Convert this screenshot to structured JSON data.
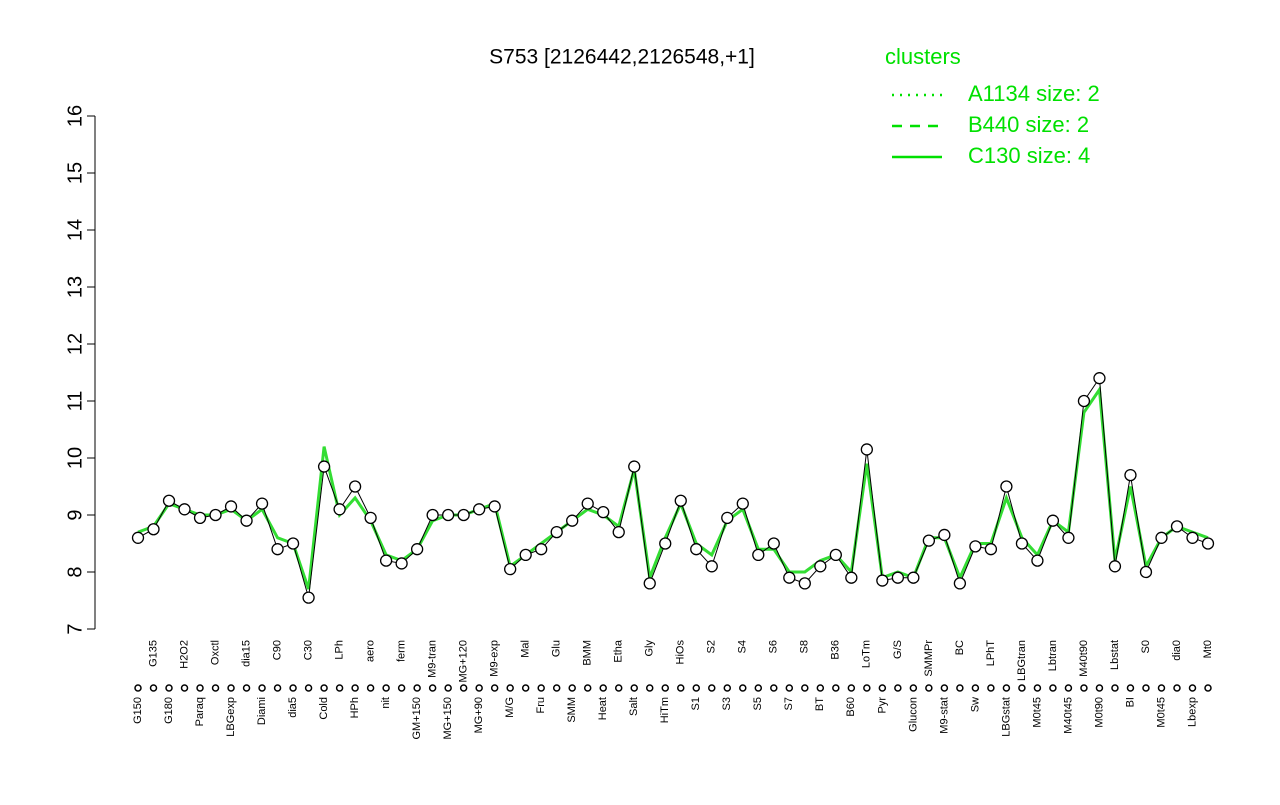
{
  "chart_data": {
    "type": "line",
    "title": "S753 [2126442,2126548,+1]",
    "ylim": [
      7,
      16
    ],
    "yticks": [
      7,
      8,
      9,
      10,
      11,
      12,
      13,
      14,
      15,
      16
    ],
    "legend_title": "clusters",
    "legend_color": "#00e000",
    "legend": [
      {
        "label": "A1134 size: 2",
        "style": "dotted"
      },
      {
        "label": "B440 size: 2",
        "style": "dashed"
      },
      {
        "label": "C130 size: 4",
        "style": "solid"
      }
    ],
    "categories": [
      "G150",
      "G135",
      "G180",
      "H2O2",
      "Paraq",
      "Oxctl",
      "LBGexp",
      "dia15",
      "Diami",
      "C90",
      "dia5",
      "C30",
      "Cold",
      "LPh",
      "HPh",
      "aero",
      "nit",
      "ferm",
      "GM+150",
      "M9-tran",
      "MG+150",
      "MG+120",
      "MG+90",
      "M9-exp",
      "M/G",
      "Mal",
      "Fru",
      "Glu",
      "SMM",
      "BMM",
      "Heat",
      "Etha",
      "Salt",
      "Gly",
      "HiTm",
      "HiOs",
      "S1",
      "S2",
      "S3",
      "S4",
      "S5",
      "S6",
      "S7",
      "S8",
      "BT",
      "B36",
      "B60",
      "LoTm",
      "Pyr",
      "G/S",
      "Glucon",
      "SMMPr",
      "M9-stat",
      "BC",
      "Sw",
      "LPhT",
      "LBGstat",
      "LBGtran",
      "M0t45",
      "Lbtran",
      "M40t45",
      "M40t90",
      "M0t90",
      "Lbstat",
      "BI",
      "S0",
      "M0t45",
      "dia0",
      "Lbexp",
      "Mt0"
    ],
    "values": [
      8.6,
      8.75,
      9.25,
      9.1,
      8.95,
      9.0,
      9.15,
      8.9,
      9.2,
      8.4,
      8.5,
      7.55,
      9.85,
      9.1,
      9.5,
      8.95,
      8.2,
      8.15,
      8.4,
      9.0,
      9.0,
      9.0,
      9.1,
      9.15,
      8.05,
      8.3,
      8.4,
      8.7,
      8.9,
      9.2,
      9.05,
      8.7,
      9.85,
      7.8,
      8.5,
      9.25,
      8.4,
      8.1,
      8.95,
      9.2,
      8.3,
      8.5,
      7.9,
      7.8,
      8.1,
      8.3,
      7.9,
      10.15,
      7.85,
      7.9,
      7.9,
      8.55,
      8.65,
      7.8,
      8.45,
      8.4,
      9.5,
      8.5,
      8.2,
      8.9,
      8.6,
      11.0,
      11.4,
      8.1,
      9.7,
      8.0,
      8.6,
      8.8,
      8.6,
      8.5
    ],
    "line_values": [
      8.7,
      8.8,
      9.2,
      9.1,
      9.0,
      9.0,
      9.1,
      8.9,
      9.1,
      8.6,
      8.5,
      7.7,
      10.2,
      9.0,
      9.3,
      8.9,
      8.3,
      8.2,
      8.4,
      8.9,
      9.0,
      9.0,
      9.1,
      9.2,
      8.1,
      8.3,
      8.5,
      8.7,
      8.9,
      9.1,
      9.0,
      8.8,
      9.8,
      7.9,
      8.6,
      9.2,
      8.5,
      8.3,
      8.9,
      9.1,
      8.4,
      8.4,
      8.0,
      8.0,
      8.2,
      8.3,
      8.0,
      9.9,
      7.9,
      8.0,
      7.9,
      8.6,
      8.6,
      7.9,
      8.5,
      8.5,
      9.3,
      8.6,
      8.3,
      8.9,
      8.7,
      10.8,
      11.2,
      8.2,
      9.5,
      8.1,
      8.6,
      8.8,
      8.7,
      8.6
    ],
    "point_color": "#000000",
    "line_color": "#33dd33"
  }
}
